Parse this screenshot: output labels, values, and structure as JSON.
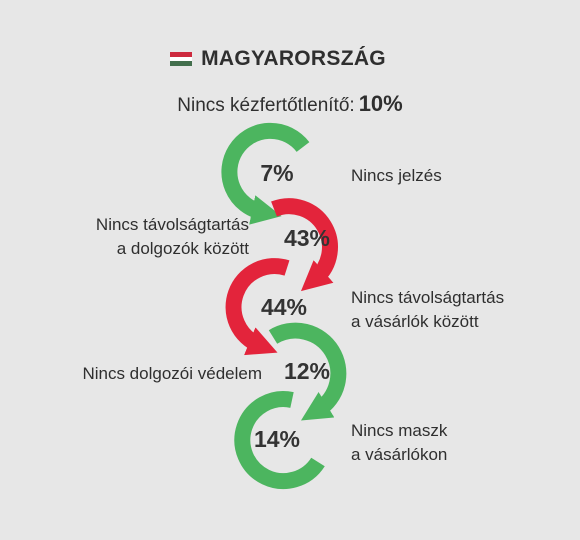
{
  "header": {
    "flag_colors": [
      "#cd2a3e",
      "#ffffff",
      "#436f4d"
    ],
    "title": "MAGYARORSZÁG"
  },
  "lead": {
    "label": "Nincs kézfertőtlenítő:",
    "value": "10%"
  },
  "colors": {
    "green": "#4cb55f",
    "red": "#e3243b"
  },
  "items": [
    {
      "value": "7%",
      "color": "green",
      "label_lines": [
        "Nincs jelzés"
      ]
    },
    {
      "value": "43%",
      "color": "red",
      "label_lines": [
        "Nincs távolságtartás",
        "a dolgozók között"
      ]
    },
    {
      "value": "44%",
      "color": "red",
      "label_lines": [
        "Nincs távolságtartás",
        "a vásárlók között"
      ]
    },
    {
      "value": "12%",
      "color": "green",
      "label_lines": [
        "Nincs dolgozói védelem"
      ]
    },
    {
      "value": "14%",
      "color": "green",
      "label_lines": [
        "Nincs maszk",
        "a vásárlókon"
      ]
    }
  ]
}
